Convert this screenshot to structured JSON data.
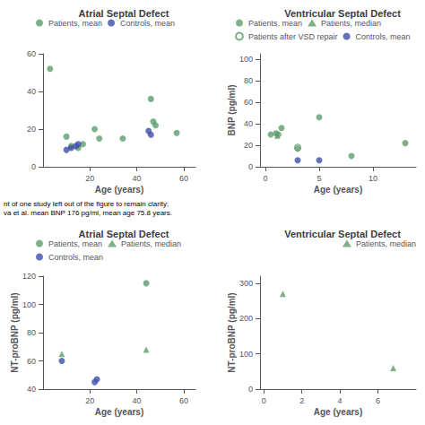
{
  "chart_data": [
    {
      "type": "scatter",
      "title": "Atrial Septal Defect",
      "xlabel": "Age (years)",
      "xlim": [
        0,
        65
      ],
      "xticks": [
        20,
        40,
        60
      ],
      "ylim": [
        0,
        60
      ],
      "yticks": [
        0,
        20,
        40,
        60
      ],
      "grid": false,
      "legend": "upper left",
      "annotations": [
        "nt of one study left out of the figure to remain clarity;",
        "va et al. mean BNP 176 pg/ml, mean age 75.8 years."
      ],
      "series": [
        {
          "name": "Patients, mean",
          "color": "#5B9E6B",
          "marker": "circle",
          "x": [
            3,
            10,
            12,
            15,
            17,
            22,
            24,
            34,
            46,
            47,
            48,
            57
          ],
          "values": [
            52,
            16,
            11,
            10,
            12,
            20,
            15,
            15,
            36,
            24,
            22,
            18
          ]
        },
        {
          "name": "Controls, mean",
          "color": "#3D4DAA",
          "marker": "circle",
          "x": [
            10,
            12,
            14,
            15,
            45,
            46
          ],
          "values": [
            9,
            10,
            11,
            12,
            19,
            17
          ]
        }
      ]
    },
    {
      "type": "scatter",
      "title": "Ventricular Septal Defect",
      "xlabel": "Age (years)",
      "ylabel": "BNP (pg/ml)",
      "xlim": [
        -0.5,
        14
      ],
      "xticks": [
        0,
        5,
        10
      ],
      "ylim": [
        0,
        105
      ],
      "yticks": [
        0,
        20,
        40,
        60,
        80,
        100
      ],
      "grid": false,
      "legend": "upper left",
      "series": [
        {
          "name": "Patients, mean",
          "color": "#5B9E6B",
          "marker": "circle",
          "x": [
            0.5,
            1.0,
            1.2,
            1.5,
            3.0,
            5.0,
            8.0,
            13.0
          ],
          "values": [
            30,
            31,
            30,
            36,
            17,
            46,
            10,
            22
          ]
        },
        {
          "name": "Patients, median",
          "color": "#5B9E6B",
          "marker": "triangle",
          "x": [
            1.1
          ],
          "values": [
            29
          ]
        },
        {
          "name": "Patients after VSD repair",
          "color": "#5B9E6B",
          "marker": "open_circle",
          "x": [
            3.0
          ],
          "values": [
            18
          ]
        },
        {
          "name": "Controls, mean",
          "color": "#3D4DAA",
          "marker": "circle",
          "x": [
            3.0,
            5.0
          ],
          "values": [
            6,
            6
          ]
        }
      ]
    },
    {
      "type": "scatter",
      "title": "Atrial Septal Defect",
      "xlabel": "Age (years)",
      "ylabel": "NT-proBNP (pg/ml)",
      "xlim": [
        0,
        65
      ],
      "xticks": [
        20,
        40,
        60
      ],
      "ylim": [
        40,
        120
      ],
      "yticks": [
        40,
        60,
        80,
        100,
        120
      ],
      "grid": false,
      "legend": "upper left",
      "series": [
        {
          "name": "Patients, mean",
          "color": "#5B9E6B",
          "marker": "circle",
          "x": [
            44
          ],
          "values": [
            115
          ]
        },
        {
          "name": "Patients, median",
          "color": "#5B9E6B",
          "marker": "triangle",
          "x": [
            8,
            44
          ],
          "values": [
            65,
            68
          ]
        },
        {
          "name": "Controls, mean",
          "color": "#3D4DAA",
          "marker": "circle",
          "x": [
            8,
            22,
            23
          ],
          "values": [
            60,
            45,
            47
          ]
        }
      ]
    },
    {
      "type": "scatter",
      "title": "Ventricular Septal Defect",
      "xlabel": "Age (years)",
      "ylabel": "NT-proBNP (pg/ml)",
      "xlim": [
        -0.2,
        8
      ],
      "xticks": [
        0,
        2,
        4,
        6
      ],
      "ylim": [
        0,
        320
      ],
      "yticks": [
        0,
        100,
        200,
        300
      ],
      "grid": false,
      "legend": "upper right",
      "series": [
        {
          "name": "Patients, median",
          "color": "#5B9E6B",
          "marker": "triangle",
          "x": [
            1.0,
            6.8
          ],
          "values": [
            270,
            60
          ]
        }
      ]
    }
  ]
}
